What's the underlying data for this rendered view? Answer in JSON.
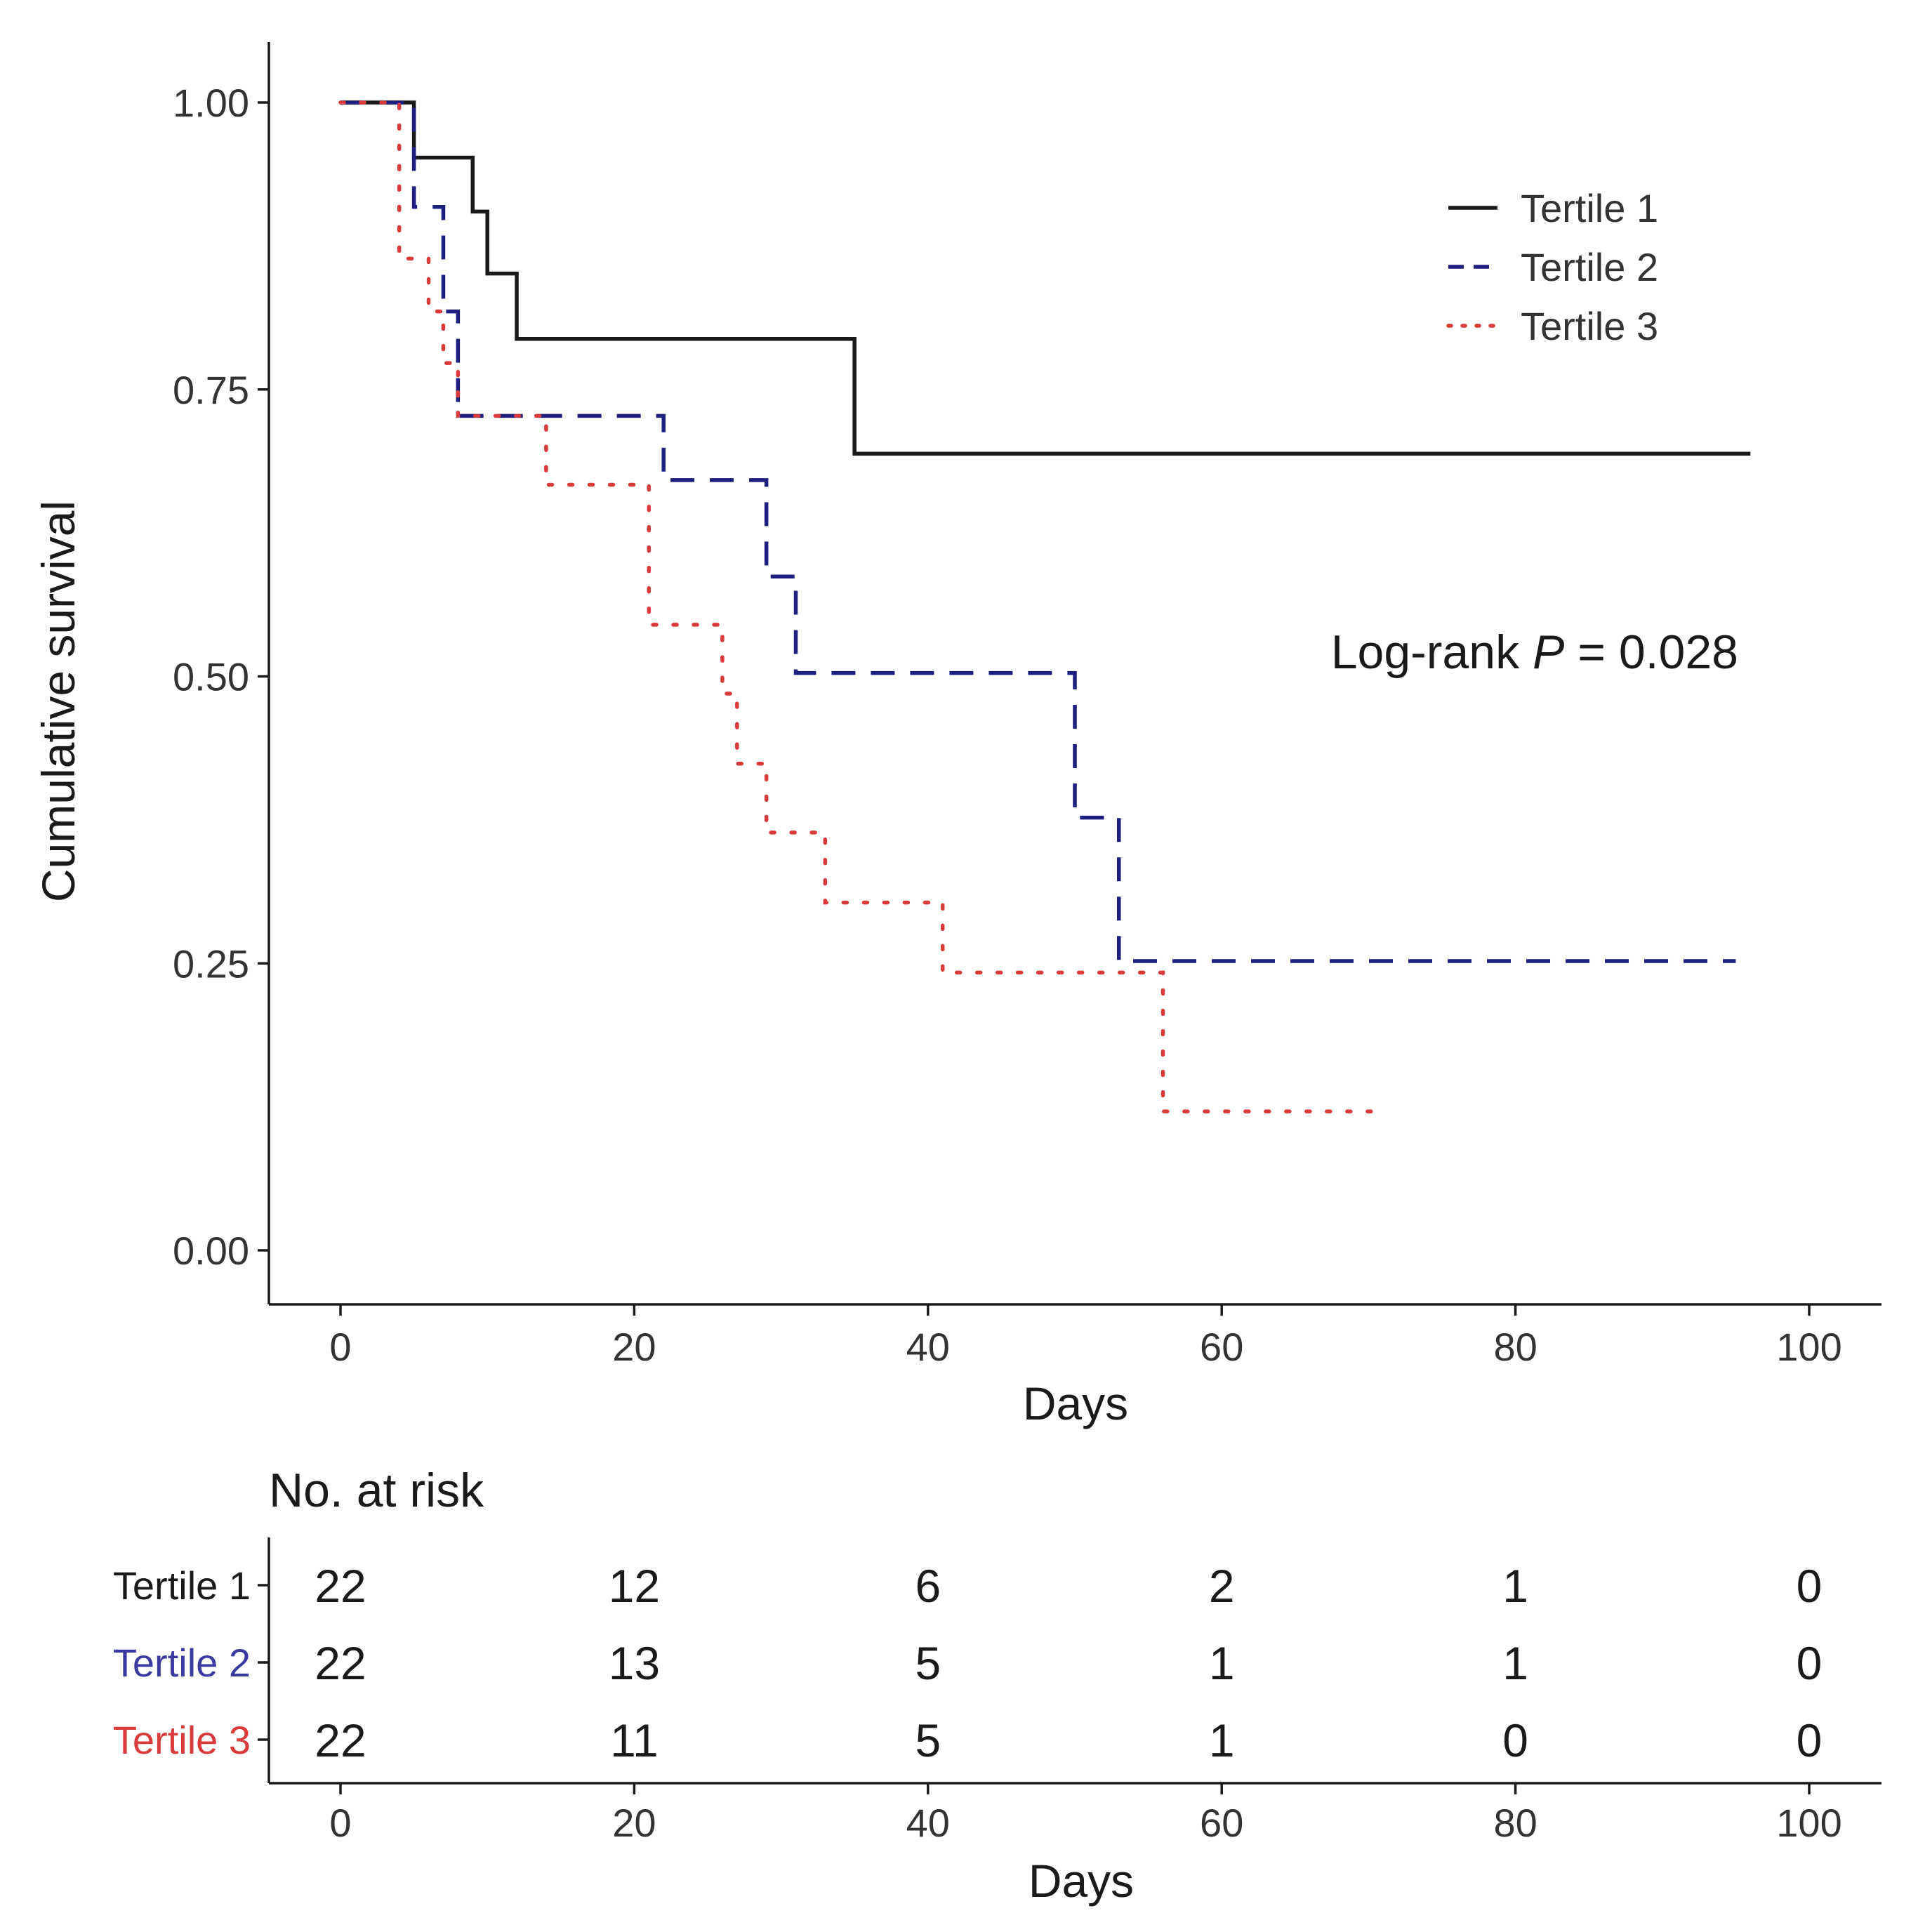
{
  "chart_data": {
    "type": "line",
    "subtype": "kaplan-meier step",
    "title": "",
    "xlabel": "Days",
    "ylabel": "Cumulative survival",
    "xlim": [
      -5,
      105
    ],
    "ylim": [
      -0.1,
      1.07
    ],
    "xticks": [
      0,
      20,
      40,
      60,
      80,
      100
    ],
    "xtick_labels": [
      "0",
      "20",
      "40",
      "60",
      "80",
      "100"
    ],
    "yticks": [
      0.0,
      0.25,
      0.5,
      0.75,
      1.0
    ],
    "ytick_labels": [
      "0.00",
      "0.25",
      "0.50",
      "0.75",
      "1.00"
    ],
    "grid": false,
    "legend_position": "top-right",
    "annotation": {
      "prefix": "Log-rank ",
      "italic": "P",
      "suffix": " = 0.028"
    },
    "series": [
      {
        "name": "Tertile 1",
        "color": "#1a1a1a",
        "dash": "solid",
        "x": [
          0,
          5,
          9,
          10,
          12,
          35,
          96
        ],
        "y": [
          1.0,
          0.952,
          0.905,
          0.851,
          0.794,
          0.694,
          0.694
        ]
      },
      {
        "name": "Tertile 2",
        "color": "#1f1f80",
        "dash": "dashed",
        "x": [
          0,
          5,
          7,
          8,
          22,
          29,
          31,
          50,
          53,
          95
        ],
        "y": [
          1.0,
          0.909,
          0.818,
          0.727,
          0.671,
          0.587,
          0.503,
          0.377,
          0.252,
          0.252
        ]
      },
      {
        "name": "Tertile 3",
        "color": "#d93a3a",
        "dash": "dotted",
        "x": [
          0,
          4,
          6,
          7,
          8,
          14,
          21,
          26,
          27,
          29,
          33,
          41,
          56,
          71
        ],
        "y": [
          1.0,
          0.864,
          0.818,
          0.773,
          0.727,
          0.667,
          0.545,
          0.485,
          0.424,
          0.364,
          0.303,
          0.242,
          0.121,
          0.121
        ]
      }
    ],
    "risk_table": {
      "title": "No. at risk",
      "xlabel": "Days",
      "timepoints": [
        0,
        20,
        40,
        60,
        80,
        100
      ],
      "rows": [
        {
          "name": "Tertile 1",
          "color": "#1a1a1a",
          "values": [
            "22",
            "12",
            "6",
            "2",
            "1",
            "0"
          ]
        },
        {
          "name": "Tertile 2",
          "color": "#3a3aa0",
          "values": [
            "22",
            "13",
            "5",
            "1",
            "1",
            "0"
          ]
        },
        {
          "name": "Tertile 3",
          "color": "#d93a3a",
          "values": [
            "22",
            "11",
            "5",
            "1",
            "0",
            "0"
          ]
        }
      ]
    }
  }
}
